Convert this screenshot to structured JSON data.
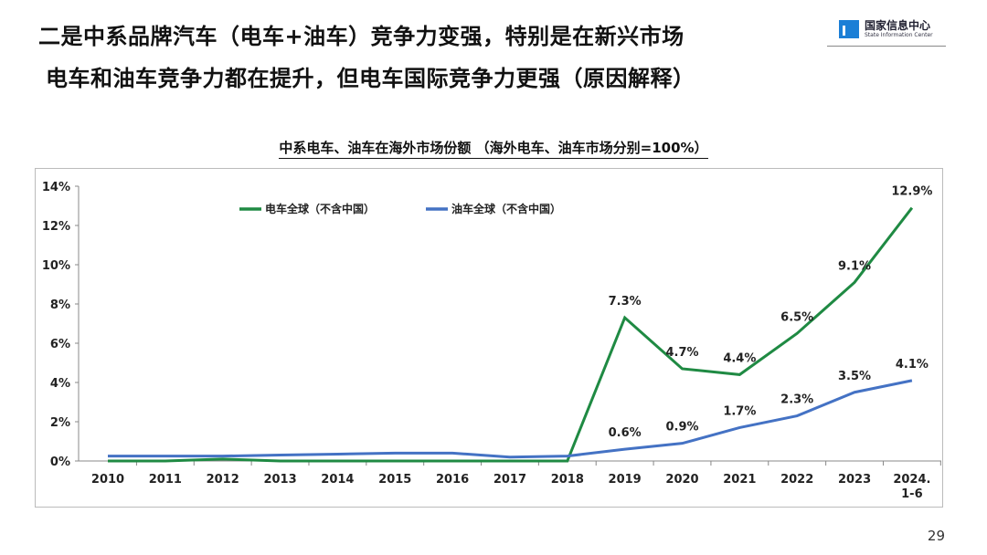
{
  "header": {
    "title": "二是中系品牌汽车（电车+油车）竞争力变强，特别是在新兴市场",
    "subtitle": "电车和油车竞争力都在提升，但电车国际竞争力更强（原因解释）"
  },
  "logo": {
    "name_cn": "国家信息中心",
    "name_en": "State Information Center"
  },
  "page_number": "29",
  "chart_data": {
    "type": "line",
    "title": "中系电车、油车在海外市场份额 （海外电车、油车市场分别=100%）",
    "categories": [
      "2010",
      "2011",
      "2012",
      "2013",
      "2014",
      "2015",
      "2016",
      "2017",
      "2018",
      "2019",
      "2020",
      "2021",
      "2022",
      "2023",
      "2024.\n1-6"
    ],
    "yticks": [
      "0%",
      "2%",
      "4%",
      "6%",
      "8%",
      "10%",
      "12%",
      "14%"
    ],
    "ylim": [
      0,
      14
    ],
    "legend_position": "top",
    "series": [
      {
        "name": "电车全球（不含中国）",
        "color": "#1f8a43",
        "values": [
          0,
          0,
          0.1,
          0,
          0,
          0,
          0,
          0,
          0,
          7.3,
          4.7,
          4.4,
          6.5,
          9.1,
          12.9
        ],
        "labels": [
          "",
          "",
          "",
          "",
          "",
          "",
          "",
          "",
          "",
          "7.3%",
          "4.7%",
          "4.4%",
          "6.5%",
          "9.1%",
          "12.9%"
        ]
      },
      {
        "name": "油车全球（不含中国）",
        "color": "#4472c4",
        "values": [
          0.25,
          0.25,
          0.25,
          0.3,
          0.35,
          0.4,
          0.4,
          0.2,
          0.25,
          0.6,
          0.9,
          1.7,
          2.3,
          3.5,
          4.1
        ],
        "labels": [
          "",
          "",
          "",
          "",
          "",
          "",
          "",
          "",
          "",
          "0.6%",
          "0.9%",
          "1.7%",
          "2.3%",
          "3.5%",
          "4.1%"
        ]
      }
    ]
  }
}
